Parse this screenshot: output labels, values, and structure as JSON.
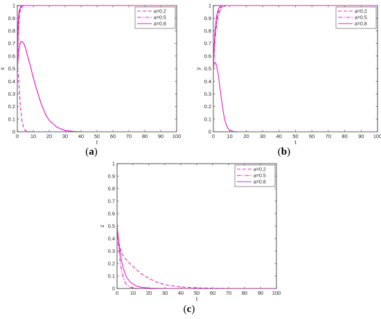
{
  "figure": {
    "panel_labels": [
      "(a)",
      "(b)",
      "(c)"
    ]
  },
  "chart_data": [
    {
      "type": "line",
      "panel": "a",
      "xlabel": "t",
      "ylabel": "x",
      "xlim": [
        0,
        100
      ],
      "ylim": [
        0,
        1
      ],
      "xticks": [
        0,
        10,
        20,
        30,
        40,
        50,
        60,
        70,
        80,
        90,
        100
      ],
      "yticks": [
        0,
        0.1,
        0.2,
        0.3,
        0.4,
        0.5,
        0.6,
        0.7,
        0.8,
        0.9,
        1
      ],
      "grid": false,
      "legend_position": "top-right",
      "series": [
        {
          "name": "a=0.2",
          "style": "dashed",
          "color": "#e020c0",
          "x": [
            0,
            0.5,
            1,
            1.5,
            2,
            3,
            4,
            5,
            6,
            8,
            10,
            100
          ],
          "y": [
            0.5,
            0.47,
            0.38,
            0.28,
            0.19,
            0.08,
            0.03,
            0.01,
            0.004,
            0.001,
            0,
            0
          ]
        },
        {
          "name": "a=0.2",
          "style": "dashed",
          "color": "#e020c0",
          "x": [
            0,
            0.5,
            1,
            1.5,
            2,
            3,
            4,
            5,
            100
          ],
          "y": [
            0.5,
            0.72,
            0.86,
            0.94,
            0.97,
            0.99,
            1,
            1,
            1
          ]
        },
        {
          "name": "a=0.5",
          "style": "dashdot",
          "color": "#e020c0",
          "x": [
            0,
            0.5,
            1,
            2,
            3,
            4,
            5,
            100
          ],
          "y": [
            0.5,
            0.78,
            0.91,
            0.98,
            0.995,
            1,
            1,
            1
          ]
        },
        {
          "name": "a=0.5",
          "style": "dashdot",
          "color": "#e020c0",
          "x": [
            0,
            1,
            2,
            3,
            4,
            5,
            6,
            8,
            10,
            12,
            15,
            18,
            20,
            25,
            30,
            35,
            40,
            100
          ],
          "y": [
            0.5,
            0.66,
            0.71,
            0.715,
            0.7,
            0.67,
            0.62,
            0.53,
            0.43,
            0.34,
            0.22,
            0.13,
            0.09,
            0.035,
            0.01,
            0.003,
            0,
            0
          ]
        },
        {
          "name": "a=0.8",
          "style": "solid",
          "color": "#e020c0",
          "x": [
            0,
            0.5,
            1,
            2,
            3,
            4,
            100
          ],
          "y": [
            0.5,
            0.85,
            0.95,
            0.99,
            1,
            1,
            1
          ]
        },
        {
          "name": "a=0.8",
          "style": "solid",
          "color": "#e020c0",
          "x": [
            0,
            1,
            2,
            3,
            4,
            5,
            6,
            8,
            10,
            12,
            15,
            18,
            20,
            25,
            30,
            35,
            40,
            100
          ],
          "y": [
            0.5,
            0.66,
            0.71,
            0.715,
            0.7,
            0.67,
            0.62,
            0.53,
            0.43,
            0.34,
            0.22,
            0.13,
            0.09,
            0.035,
            0.01,
            0.003,
            0,
            0
          ]
        }
      ]
    },
    {
      "type": "line",
      "panel": "b",
      "xlabel": "t",
      "ylabel": "y",
      "xlim": [
        0,
        100
      ],
      "ylim": [
        0,
        1
      ],
      "xticks": [
        0,
        10,
        20,
        30,
        40,
        50,
        60,
        70,
        80,
        90,
        100
      ],
      "yticks": [
        0,
        0.1,
        0.2,
        0.3,
        0.4,
        0.5,
        0.6,
        0.7,
        0.8,
        0.9,
        1
      ],
      "grid": false,
      "legend_position": "top-right",
      "series": [
        {
          "name": "a=0.2",
          "style": "dashed",
          "color": "#e020c0",
          "x": [
            0,
            0.5,
            1,
            2,
            3,
            4,
            5,
            6,
            8,
            100
          ],
          "y": [
            0.5,
            0.66,
            0.77,
            0.89,
            0.95,
            0.98,
            0.99,
            1,
            1,
            1
          ]
        },
        {
          "name": "a=0.5",
          "style": "dashdot",
          "color": "#e020c0",
          "x": [
            0,
            0.5,
            1,
            2,
            3,
            4,
            5,
            6,
            8,
            10,
            100
          ],
          "y": [
            0.5,
            0.63,
            0.73,
            0.85,
            0.92,
            0.96,
            0.98,
            0.99,
            1,
            1,
            1
          ]
        },
        {
          "name": "a=0.8",
          "style": "solid",
          "color": "#e020c0",
          "x": [
            0,
            0.5,
            1,
            2,
            3,
            4,
            5,
            6,
            8,
            10,
            100
          ],
          "y": [
            0.5,
            0.68,
            0.8,
            0.92,
            0.97,
            0.99,
            1,
            1,
            1,
            1,
            1
          ]
        },
        {
          "name": "a=0.8",
          "style": "solid",
          "color": "#e020c0",
          "x": [
            0,
            0.5,
            1,
            1.5,
            2,
            3,
            4,
            5,
            6,
            7,
            8,
            9,
            10,
            12,
            15,
            100
          ],
          "y": [
            0.5,
            0.54,
            0.55,
            0.54,
            0.52,
            0.45,
            0.35,
            0.25,
            0.16,
            0.09,
            0.05,
            0.025,
            0.012,
            0.003,
            0,
            0
          ]
        }
      ]
    },
    {
      "type": "line",
      "panel": "c",
      "xlabel": "t",
      "ylabel": "z",
      "xlim": [
        0,
        100
      ],
      "ylim": [
        0,
        1
      ],
      "xticks": [
        0,
        10,
        20,
        30,
        40,
        50,
        60,
        70,
        80,
        90,
        100
      ],
      "yticks": [
        0,
        0.1,
        0.2,
        0.3,
        0.4,
        0.5,
        0.6,
        0.7,
        0.8,
        0.9,
        1
      ],
      "grid": false,
      "legend_position": "top-right",
      "series": [
        {
          "name": "a=0.2",
          "style": "dashed",
          "color": "#e020c0",
          "x": [
            0,
            1,
            2,
            3,
            5,
            8,
            10,
            15,
            20,
            25,
            30,
            40,
            50,
            60,
            70,
            100
          ],
          "y": [
            0.5,
            0.37,
            0.32,
            0.28,
            0.24,
            0.2,
            0.175,
            0.12,
            0.08,
            0.05,
            0.03,
            0.012,
            0.005,
            0.002,
            0,
            0
          ]
        },
        {
          "name": "a=0.5",
          "style": "dashdot",
          "color": "#e020c0",
          "x": [
            0,
            1,
            2,
            3,
            4,
            5,
            6,
            8,
            10,
            12,
            15,
            20,
            100
          ],
          "y": [
            0.5,
            0.33,
            0.21,
            0.13,
            0.08,
            0.05,
            0.03,
            0.012,
            0.005,
            0.002,
            0,
            0,
            0
          ]
        },
        {
          "name": "a=0.8",
          "style": "solid",
          "color": "#e020c0",
          "x": [
            0,
            1,
            2,
            3,
            4,
            5,
            6,
            8,
            10,
            12,
            15,
            20,
            25,
            30,
            100
          ],
          "y": [
            0.5,
            0.38,
            0.28,
            0.21,
            0.16,
            0.12,
            0.09,
            0.055,
            0.035,
            0.02,
            0.01,
            0.003,
            0.001,
            0,
            0
          ]
        }
      ]
    }
  ]
}
